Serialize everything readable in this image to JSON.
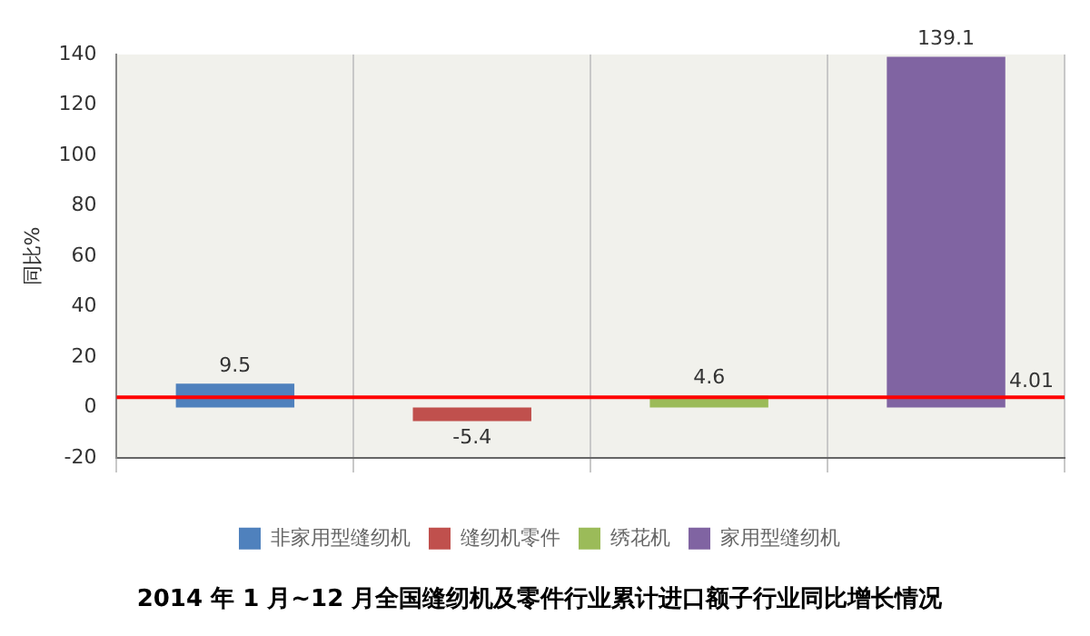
{
  "chart_data": {
    "type": "bar",
    "title": "2014 年 1 月~12 月全国缝纫机及零件行业累计进口额子行业同比增长情况",
    "ylabel": "同比%",
    "categories": [
      null,
      null,
      null,
      null
    ],
    "series": [
      {
        "name": "非家用型缝纫机",
        "color": "#4f81bd",
        "values": [
          9.5,
          null,
          null,
          null
        ]
      },
      {
        "name": "缝纫机零件",
        "color": "#c0504d",
        "values": [
          null,
          -5.4,
          null,
          null
        ]
      },
      {
        "name": "绣花机",
        "color": "#9bbb59",
        "values": [
          null,
          null,
          4.6,
          null
        ]
      },
      {
        "name": "家用型缝纫机",
        "color": "#8064a2",
        "values": [
          null,
          null,
          null,
          139.1
        ]
      }
    ],
    "ylim": [
      -20,
      140
    ],
    "yticks": [
      -20,
      0,
      20,
      40,
      60,
      80,
      100,
      120,
      140
    ],
    "ref_lines": [
      {
        "axis": "y",
        "value": 4.01,
        "label": "4.01",
        "color": "#ff0000"
      }
    ],
    "grid": "x",
    "legend": "bottom",
    "data_labels": true
  }
}
